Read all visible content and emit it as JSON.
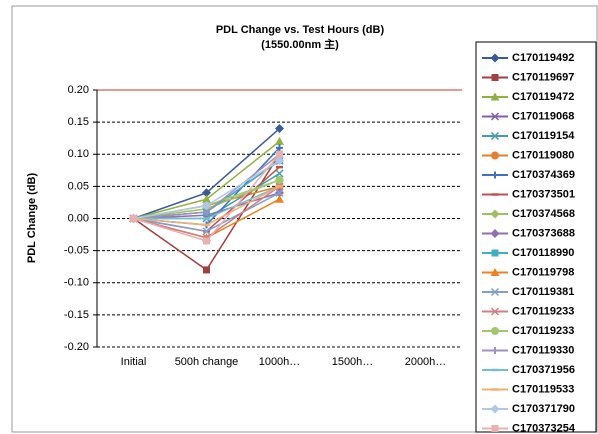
{
  "chart_data": {
    "type": "line",
    "title": "PDL Change vs.  Test Hours (dB)",
    "subtitle": "(1550.00nm 主)",
    "y_label": "PDL  Change (dB)",
    "categories": [
      "Initial",
      "500h change",
      "1000h…",
      "1500h…",
      "2000h…"
    ],
    "ylim": [
      -0.2,
      0.2
    ],
    "yticks": [
      {
        "value": 0.2,
        "label": "0.20"
      },
      0.15,
      {
        "value": 0.1,
        "label": "0.10"
      },
      0.05,
      {
        "value": 0,
        "label": "0.00"
      },
      -0.05,
      {
        "value": -0.1,
        "label": "-0.10"
      },
      -0.15,
      {
        "value": -0.2,
        "label": "-0.20"
      }
    ],
    "grid": true,
    "legend": "right",
    "series": [
      {
        "name": "C170119492",
        "color": "#3a5a9a",
        "marker": "diamond",
        "values": [
          0,
          0.04,
          0.14,
          null,
          null
        ]
      },
      {
        "name": "C170119697",
        "color": "#a04040",
        "marker": "square",
        "values": [
          0,
          -0.08,
          0.1,
          null,
          null
        ]
      },
      {
        "name": "C170119472",
        "color": "#90b040",
        "marker": "triangle",
        "values": [
          0,
          0.03,
          0.12,
          null,
          null
        ]
      },
      {
        "name": "C170119068",
        "color": "#8060a0",
        "marker": "x",
        "values": [
          0,
          0.01,
          0.09,
          null,
          null
        ]
      },
      {
        "name": "C170119154",
        "color": "#40a0b0",
        "marker": "x",
        "values": [
          0,
          0,
          0.07,
          null,
          null
        ]
      },
      {
        "name": "C170119080",
        "color": "#e08030",
        "marker": "circle",
        "values": [
          0,
          0.02,
          0.05,
          null,
          null
        ]
      },
      {
        "name": "C170374369",
        "color": "#4070c0",
        "marker": "plus",
        "values": [
          0,
          -0.01,
          0.11,
          null,
          null
        ]
      },
      {
        "name": "C170373501",
        "color": "#c05050",
        "marker": "dash",
        "values": [
          0,
          -0.02,
          0.08,
          null,
          null
        ]
      },
      {
        "name": "C170374568",
        "color": "#a0c060",
        "marker": "diamond",
        "values": [
          0,
          0.015,
          0.06,
          null,
          null
        ]
      },
      {
        "name": "C170373688",
        "color": "#9070b0",
        "marker": "diamond",
        "values": [
          0,
          0.005,
          0.04,
          null,
          null
        ]
      },
      {
        "name": "C170118990",
        "color": "#40b0c0",
        "marker": "square",
        "values": [
          0,
          0.01,
          0.09,
          null,
          null
        ]
      },
      {
        "name": "C170119798",
        "color": "#f08020",
        "marker": "triangle",
        "values": [
          0,
          -0.03,
          0.03,
          null,
          null
        ]
      },
      {
        "name": "C170119381",
        "color": "#80a0d0",
        "marker": "x",
        "values": [
          0,
          -0.02,
          0.04,
          null,
          null
        ]
      },
      {
        "name": "C170119233",
        "color": "#d08080",
        "marker": "x",
        "values": [
          0,
          -0.03,
          0.05,
          null,
          null
        ]
      },
      {
        "name": "C170119233",
        "color": "#a0c870",
        "marker": "circle",
        "values": [
          0,
          0.02,
          0.06,
          null,
          null
        ]
      },
      {
        "name": "C170119330",
        "color": "#a090c0",
        "marker": "plus",
        "values": [
          0,
          0.01,
          0.1,
          null,
          null
        ]
      },
      {
        "name": "C170371956",
        "color": "#70c0d0",
        "marker": "dash",
        "values": [
          0,
          0,
          0.05,
          null,
          null
        ]
      },
      {
        "name": "C170119533",
        "color": "#f0b070",
        "marker": "dash",
        "values": [
          0,
          -0.01,
          0.05,
          null,
          null
        ]
      },
      {
        "name": "C170371790",
        "color": "#b0c8e8",
        "marker": "diamond",
        "values": [
          0,
          0.02,
          0.09,
          null,
          null
        ]
      },
      {
        "name": "C170373254",
        "color": "#e8b0b0",
        "marker": "square",
        "values": [
          0,
          -0.035,
          0.1,
          null,
          null
        ]
      }
    ]
  }
}
